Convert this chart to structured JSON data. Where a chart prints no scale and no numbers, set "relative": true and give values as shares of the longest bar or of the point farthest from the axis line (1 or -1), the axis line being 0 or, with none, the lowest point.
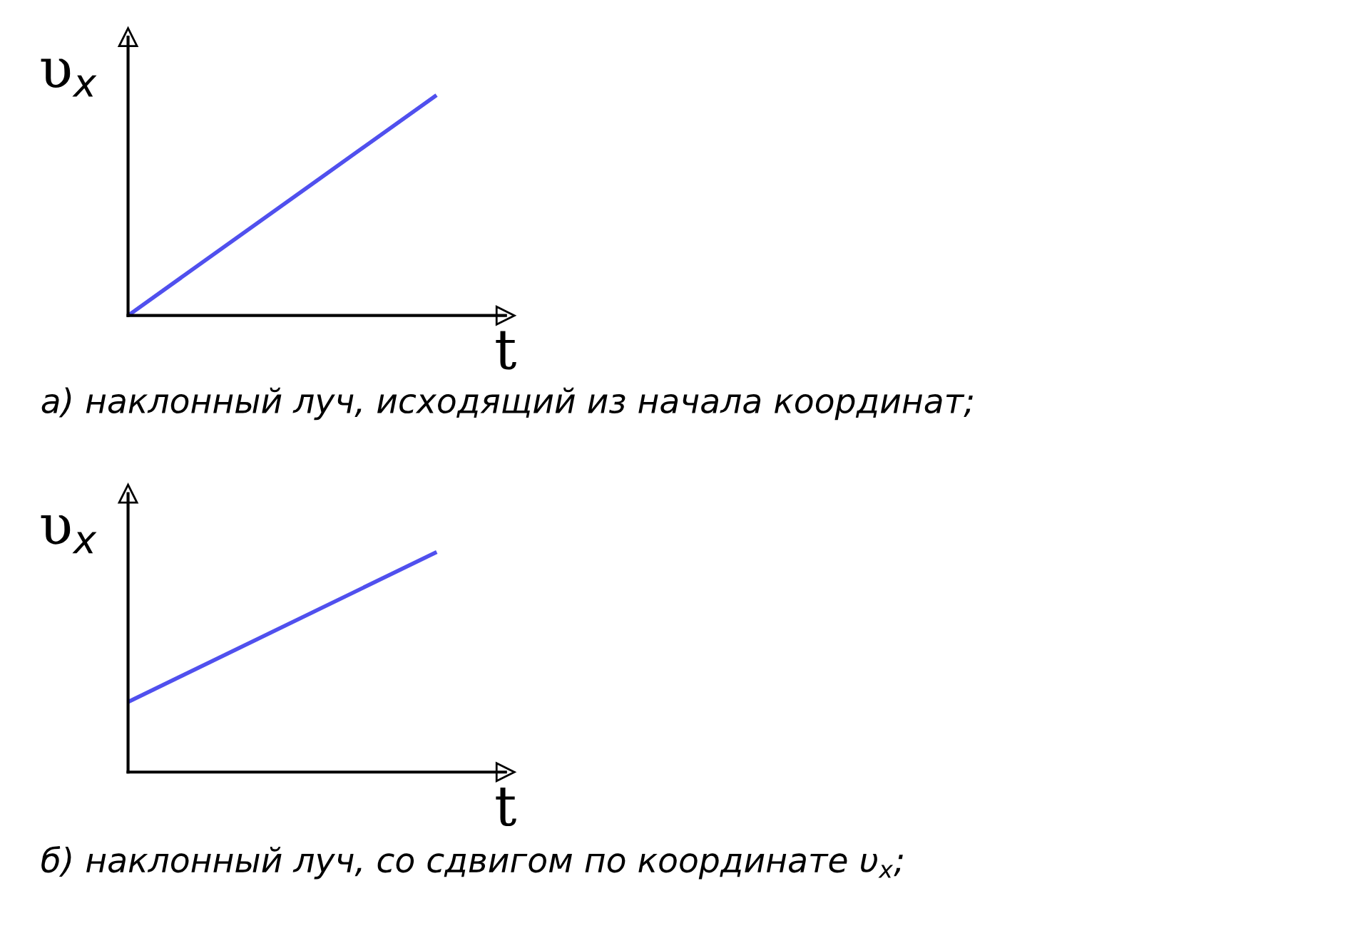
{
  "chart_data": [
    {
      "type": "line",
      "relative": true,
      "categories": [
        null,
        null
      ],
      "xlabel": "t",
      "ylabel": "υ$_{x}$",
      "series": [
        {
          "color": "#5050ee",
          "values": [
            0,
            1
          ]
        }
      ],
      "annotations": [
        "а) наклонный луч, исходящий из начала координат;"
      ]
    },
    {
      "type": "line",
      "relative": true,
      "categories": [
        null,
        null
      ],
      "xlabel": "t",
      "ylabel": "υ$_{x}$",
      "series": [
        {
          "color": "#5050ee",
          "values": [
            0.32,
            1
          ]
        }
      ],
      "annotations": [
        "б) наклонный луч, со сдвигом по координате υ$_{x}$;"
      ]
    }
  ]
}
